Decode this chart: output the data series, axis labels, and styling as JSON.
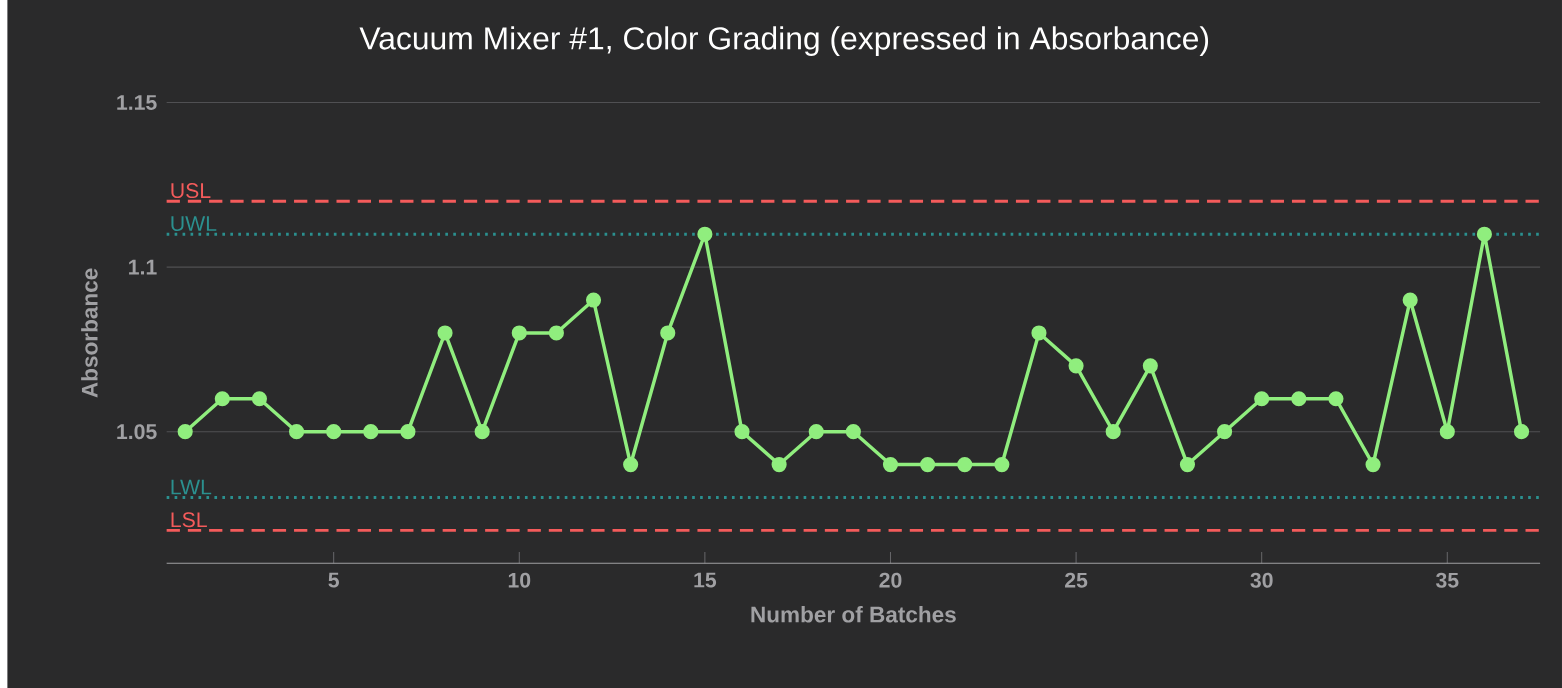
{
  "chart_data": {
    "type": "line",
    "title": "Vacuum Mixer #1, Color Grading (expressed in Absorbance)",
    "xlabel": "Number of Batches",
    "ylabel": "Absorbance",
    "x": [
      1,
      2,
      3,
      4,
      5,
      6,
      7,
      8,
      9,
      10,
      11,
      12,
      13,
      14,
      15,
      16,
      17,
      18,
      19,
      20,
      21,
      22,
      23,
      24,
      25,
      26,
      27,
      28,
      29,
      30,
      31,
      32,
      33,
      34,
      35,
      36,
      37
    ],
    "series": [
      {
        "color": "#90ee7e",
        "values": [
          1.05,
          1.06,
          1.06,
          1.05,
          1.05,
          1.05,
          1.05,
          1.08,
          1.05,
          1.08,
          1.08,
          1.09,
          1.04,
          1.08,
          1.11,
          1.05,
          1.04,
          1.05,
          1.05,
          1.04,
          1.04,
          1.04,
          1.04,
          1.08,
          1.07,
          1.05,
          1.07,
          1.04,
          1.05,
          1.06,
          1.06,
          1.06,
          1.04,
          1.09,
          1.05,
          1.11,
          1.05
        ]
      }
    ],
    "xlim": [
      0.5,
      37.5
    ],
    "ylim": [
      1.01,
      1.15
    ],
    "xticks": [
      5,
      10,
      15,
      20,
      25,
      30,
      35
    ],
    "yticks": [
      1.05,
      1.1,
      1.15
    ],
    "grid": "y",
    "marker": "circle",
    "line_style": "solid",
    "ref_lines": [
      {
        "axis": "y",
        "value": 1.12,
        "label": "USL",
        "color": "#f45b5b",
        "line_style": "dashed"
      },
      {
        "axis": "y",
        "value": 1.11,
        "label": "UWL",
        "color": "#2b908f",
        "line_style": "dotted"
      },
      {
        "axis": "y",
        "value": 1.03,
        "label": "LWL",
        "color": "#2b908f",
        "line_style": "dotted"
      },
      {
        "axis": "y",
        "value": 1.02,
        "label": "LSL",
        "color": "#f45b5b",
        "line_style": "dashed"
      }
    ]
  }
}
